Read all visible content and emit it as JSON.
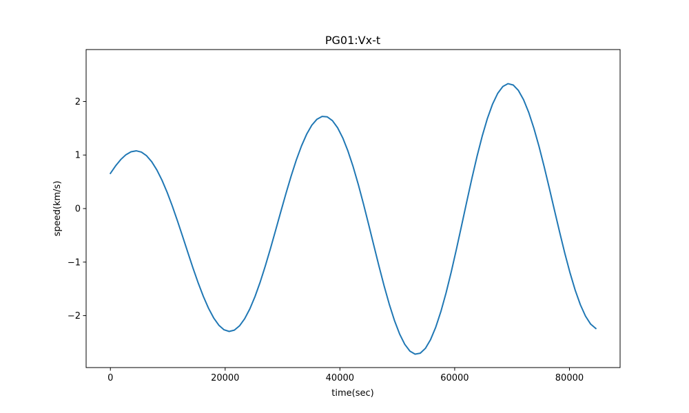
{
  "chart_data": {
    "type": "line",
    "title": "PG01:Vx-t",
    "xlabel": "time(sec)",
    "ylabel": "speed(km/s)",
    "xlim": [
      -4230,
      88830
    ],
    "ylim": [
      -2.97,
      2.97
    ],
    "xticks": [
      0,
      20000,
      40000,
      60000,
      80000
    ],
    "xtick_labels": [
      "0",
      "20000",
      "40000",
      "60000",
      "80000"
    ],
    "yticks": [
      -2,
      -1,
      0,
      1,
      2
    ],
    "ytick_labels": [
      "−2",
      "−1",
      "0",
      "1",
      "2"
    ],
    "grid": false,
    "series": [
      {
        "color": "#1f77b4",
        "x": [
          0,
          900,
          1800,
          2700,
          3600,
          4500,
          5400,
          6300,
          7200,
          8100,
          9000,
          9900,
          10800,
          11700,
          12600,
          13500,
          14400,
          15300,
          16200,
          17100,
          18000,
          18900,
          19800,
          20700,
          21600,
          22500,
          23400,
          24300,
          25200,
          26100,
          27000,
          27900,
          28800,
          29700,
          30600,
          31500,
          32400,
          33300,
          34200,
          35100,
          36000,
          36900,
          37800,
          38700,
          39600,
          40500,
          41400,
          42300,
          43200,
          44100,
          45000,
          45900,
          46800,
          47700,
          48600,
          49500,
          50400,
          51300,
          52200,
          53100,
          54000,
          54900,
          55800,
          56700,
          57600,
          58500,
          59400,
          60300,
          61200,
          62100,
          63000,
          63900,
          64800,
          65700,
          66600,
          67500,
          68400,
          69300,
          70200,
          71100,
          72000,
          72900,
          73800,
          74700,
          75600,
          76500,
          77400,
          78300,
          79200,
          80100,
          81000,
          81900,
          82800,
          83700,
          84600
        ],
        "y": [
          0.657,
          0.797,
          0.915,
          1.005,
          1.061,
          1.079,
          1.055,
          0.987,
          0.875,
          0.721,
          0.528,
          0.301,
          0.044,
          -0.234,
          -0.525,
          -0.821,
          -1.113,
          -1.389,
          -1.641,
          -1.862,
          -2.043,
          -2.179,
          -2.264,
          -2.295,
          -2.271,
          -2.191,
          -2.058,
          -1.874,
          -1.644,
          -1.374,
          -1.071,
          -0.745,
          -0.403,
          -0.057,
          0.283,
          0.608,
          0.907,
          1.169,
          1.388,
          1.557,
          1.669,
          1.722,
          1.713,
          1.642,
          1.509,
          1.319,
          1.075,
          0.783,
          0.451,
          0.088,
          -0.294,
          -0.685,
          -1.072,
          -1.443,
          -1.786,
          -2.089,
          -2.342,
          -2.535,
          -2.663,
          -2.719,
          -2.702,
          -2.611,
          -2.447,
          -2.216,
          -1.922,
          -1.575,
          -1.184,
          -0.761,
          -0.32,
          0.126,
          0.563,
          0.977,
          1.354,
          1.682,
          1.951,
          2.152,
          2.281,
          2.333,
          2.308,
          2.207,
          2.035,
          1.797,
          1.502,
          1.16,
          0.781,
          0.378,
          -0.035,
          -0.444,
          -0.837,
          -1.2,
          -1.523,
          -1.795,
          -2.009,
          -2.159,
          -2.24
        ]
      }
    ]
  }
}
